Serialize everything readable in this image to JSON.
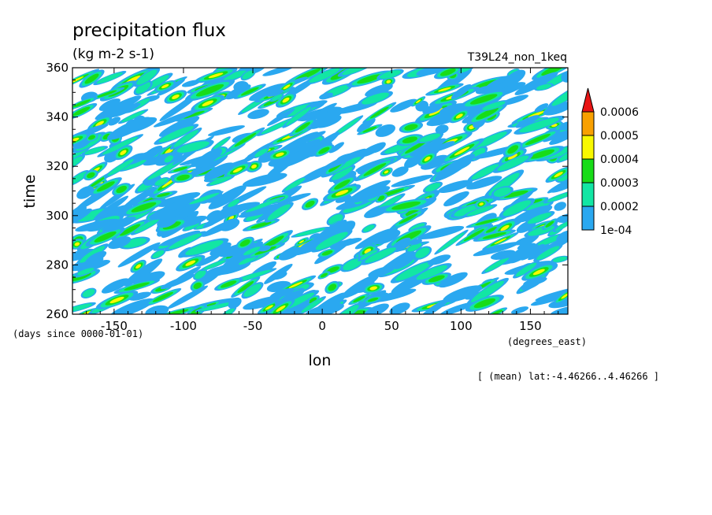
{
  "chart_data": {
    "type": "heatmap",
    "title": "precipitation flux",
    "units": "(kg m-2 s-1)",
    "run_label": "T39L24_non_1keq",
    "xlabel": "lon",
    "ylabel": "time",
    "x_unit_label": "(degrees_east)",
    "y_unit_label": "(days since 0000-01-01)",
    "subset_note": "[ (mean) lat:-4.46266..4.46266 ]",
    "xlim": [
      -180,
      177
    ],
    "ylim": [
      260,
      360
    ],
    "x_ticks": [
      -150,
      -100,
      -50,
      0,
      50,
      100,
      150
    ],
    "y_ticks": [
      260,
      280,
      300,
      320,
      340,
      360
    ],
    "x_tick_labels": [
      "-150",
      "-100",
      "-50",
      "0",
      "50",
      "100",
      "150"
    ],
    "y_tick_labels": [
      "260",
      "280",
      "300",
      "320",
      "340",
      "360"
    ],
    "colorbar": {
      "levels": [
        0.0001,
        0.0002,
        0.0003,
        0.0004,
        0.0005,
        0.0006
      ],
      "labels": [
        "1e-04",
        "0.0002",
        "0.0003",
        "0.0004",
        "0.0005",
        "0.0006"
      ],
      "colors": [
        "#2aa8f0",
        "#12e6a4",
        "#18dc18",
        "#f8f800",
        "#f8a000",
        "#e81414"
      ],
      "extend": "max"
    },
    "field_description_colors": {
      "below_lowest": "#ffffff"
    }
  }
}
